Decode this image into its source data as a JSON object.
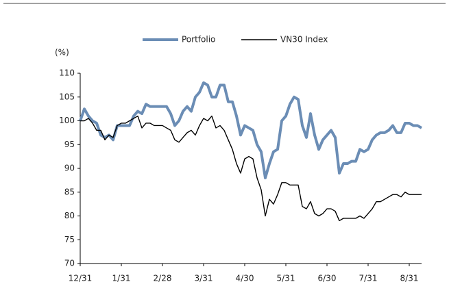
{
  "chart_data": {
    "type": "line",
    "y_label": "(%)",
    "categories": [
      "12/31",
      null,
      null,
      null,
      null,
      null,
      null,
      null,
      null,
      null,
      "1/31",
      null,
      null,
      null,
      null,
      null,
      null,
      null,
      null,
      null,
      "2/28",
      null,
      null,
      null,
      null,
      null,
      null,
      null,
      null,
      null,
      "3/31",
      null,
      null,
      null,
      null,
      null,
      null,
      null,
      null,
      null,
      "4/30",
      null,
      null,
      null,
      null,
      null,
      null,
      null,
      null,
      null,
      "5/31",
      null,
      null,
      null,
      null,
      null,
      null,
      null,
      null,
      null,
      "6/30",
      null,
      null,
      null,
      null,
      null,
      null,
      null,
      null,
      null,
      "7/31",
      null,
      null,
      null,
      null,
      null,
      null,
      null,
      null,
      null,
      "8/31",
      null,
      null,
      null
    ],
    "series": [
      {
        "name": "Portfolio",
        "color": "#6b8db5",
        "values": [
          100,
          102.5,
          101,
          100,
          99.5,
          97,
          96.5,
          97,
          96,
          99,
          99,
          99,
          99,
          101,
          102,
          101.5,
          103.5,
          103,
          103,
          103,
          103,
          103,
          101.5,
          99,
          100,
          102,
          103,
          102,
          105,
          106,
          108,
          107.5,
          105,
          105,
          107.5,
          107.5,
          104,
          104,
          101,
          97,
          99,
          98.5,
          98,
          95,
          93.5,
          88,
          91,
          93.5,
          94,
          100,
          101,
          103.5,
          105,
          104.5,
          99,
          96.5,
          101.5,
          97,
          94,
          96,
          97,
          98,
          96.5,
          89,
          91,
          91,
          91.5,
          91.5,
          94,
          93.5,
          94,
          96,
          97,
          97.5,
          97.5,
          98,
          99,
          97.5,
          97.5,
          99.5,
          99.5,
          99,
          99,
          98.5
        ]
      },
      {
        "name": "VN30 Index",
        "color": "#000000",
        "values": [
          100,
          100,
          100.5,
          99.5,
          98,
          98,
          96,
          97,
          96.5,
          99,
          99.5,
          99.5,
          100,
          100.5,
          101,
          98.5,
          99.5,
          99.5,
          99,
          99,
          99,
          98.5,
          98,
          96,
          95.5,
          96.5,
          97.5,
          98,
          97,
          99,
          100.5,
          100,
          101,
          98.5,
          99,
          98,
          96,
          94,
          91,
          89,
          92,
          92.5,
          92,
          88,
          85.5,
          80,
          83.5,
          82.5,
          84.5,
          87,
          87,
          86.5,
          86.5,
          86.5,
          82,
          81.5,
          83,
          80.5,
          80,
          80.5,
          81.5,
          81.5,
          81,
          79,
          79.5,
          79.5,
          79.5,
          79.5,
          80,
          79.5,
          80.5,
          81.5,
          83,
          83,
          83.5,
          84,
          84.5,
          84.5,
          84,
          85,
          84.5,
          84.5,
          84.5,
          84.5
        ]
      }
    ],
    "ylim": [
      70,
      110
    ],
    "yticks": [
      70,
      75,
      80,
      85,
      90,
      95,
      100,
      105,
      110
    ],
    "legend": "top"
  }
}
